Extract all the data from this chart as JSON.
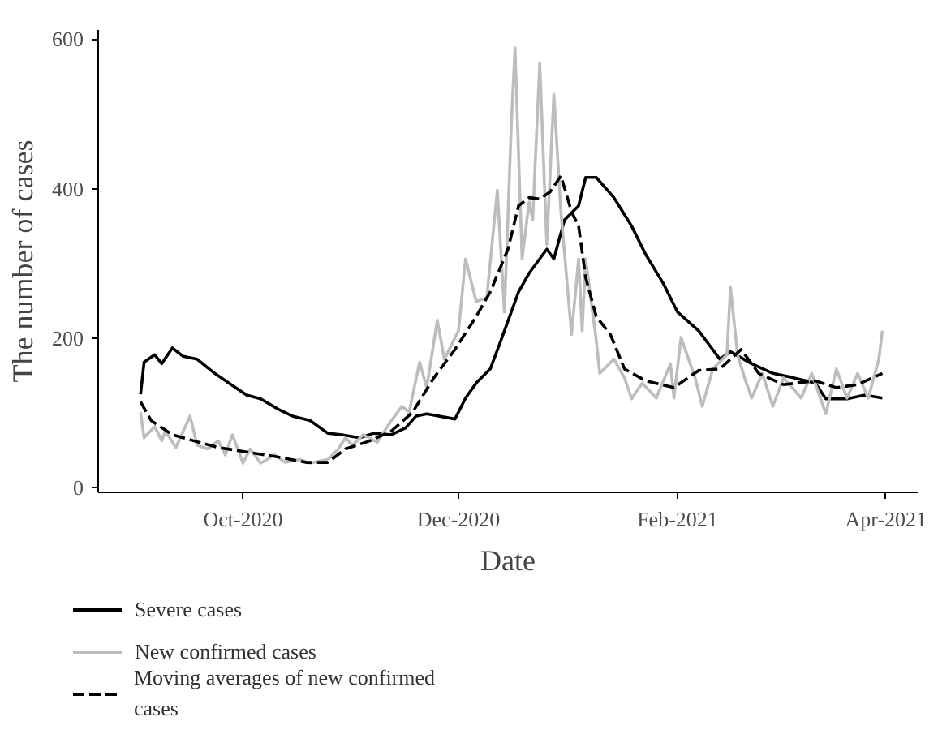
{
  "chart_data": {
    "type": "line",
    "xlabel": "Date",
    "ylabel": "The number of cases",
    "xlim": [
      "2020-08-21",
      "2021-04-10"
    ],
    "ylim": [
      -6,
      612
    ],
    "xticks": [
      {
        "value": "2020-10-01",
        "label": "Oct-2020"
      },
      {
        "value": "2020-12-01",
        "label": "Dec-2020"
      },
      {
        "value": "2021-02-01",
        "label": "Feb-2021"
      },
      {
        "value": "2021-04-01",
        "label": "Apr-2021"
      }
    ],
    "yticks": [
      0,
      200,
      400,
      600
    ],
    "grid": false,
    "legend": "bottom",
    "series": [
      {
        "name": "Severe cases",
        "color": "#000000",
        "line_style": "solid",
        "x": [
          "2020-09-02",
          "2020-09-03",
          "2020-09-06",
          "2020-09-08",
          "2020-09-11",
          "2020-09-14",
          "2020-09-18",
          "2020-09-23",
          "2020-09-27",
          "2020-10-02",
          "2020-10-06",
          "2020-10-11",
          "2020-10-15",
          "2020-10-20",
          "2020-10-25",
          "2020-10-29",
          "2020-11-03",
          "2020-11-07",
          "2020-11-12",
          "2020-11-16",
          "2020-11-19",
          "2020-11-22",
          "2020-11-30",
          "2020-12-03",
          "2020-12-06",
          "2020-12-10",
          "2020-12-13",
          "2020-12-18",
          "2020-12-21",
          "2020-12-26",
          "2020-12-28",
          "2020-12-31",
          "2021-01-04",
          "2021-01-06",
          "2021-01-09",
          "2021-01-14",
          "2021-01-19",
          "2021-01-23",
          "2021-01-28",
          "2021-02-01",
          "2021-02-07",
          "2021-02-13",
          "2021-02-16",
          "2021-02-22",
          "2021-02-28",
          "2021-03-06",
          "2021-03-12",
          "2021-03-15",
          "2021-03-21",
          "2021-03-26",
          "2021-03-31"
        ],
        "values": [
          125,
          168,
          178,
          166,
          187,
          176,
          172,
          153,
          140,
          124,
          119,
          105,
          96,
          90,
          73,
          71,
          67,
          73,
          71,
          80,
          96,
          99,
          92,
          120,
          140,
          159,
          197,
          262,
          287,
          319,
          306,
          358,
          377,
          415,
          415,
          388,
          350,
          312,
          273,
          235,
          210,
          172,
          182,
          166,
          153,
          147,
          140,
          119,
          119,
          124,
          120
        ]
      },
      {
        "name": "New confirmed cases",
        "color": "#bdbdbd",
        "line_style": "solid",
        "x": [
          "2020-09-02",
          "2020-09-03",
          "2020-09-06",
          "2020-09-08",
          "2020-09-09",
          "2020-09-12",
          "2020-09-16",
          "2020-09-18",
          "2020-09-21",
          "2020-09-24",
          "2020-09-26",
          "2020-09-28",
          "2020-10-01",
          "2020-10-03",
          "2020-10-06",
          "2020-10-10",
          "2020-10-13",
          "2020-10-17",
          "2020-10-20",
          "2020-10-25",
          "2020-10-28",
          "2020-10-30",
          "2020-11-01",
          "2020-11-04",
          "2020-11-08",
          "2020-11-12",
          "2020-11-15",
          "2020-11-17",
          "2020-11-20",
          "2020-11-22",
          "2020-11-25",
          "2020-11-27",
          "2020-12-01",
          "2020-12-03",
          "2020-12-06",
          "2020-12-09",
          "2020-12-12",
          "2020-12-14",
          "2020-12-16",
          "2020-12-17",
          "2020-12-19",
          "2020-12-21",
          "2020-12-22",
          "2020-12-24",
          "2020-12-26",
          "2020-12-28",
          "2020-12-30",
          "2021-01-02",
          "2021-01-04",
          "2021-01-05",
          "2021-01-06",
          "2021-01-09",
          "2021-01-10",
          "2021-01-14",
          "2021-01-17",
          "2021-01-19",
          "2021-01-22",
          "2021-01-26",
          "2021-01-30",
          "2021-01-31",
          "2021-02-02",
          "2021-02-06",
          "2021-02-08",
          "2021-02-11",
          "2021-02-15",
          "2021-02-16",
          "2021-02-18",
          "2021-02-20",
          "2021-02-22",
          "2021-02-25",
          "2021-02-28",
          "2021-03-03",
          "2021-03-08",
          "2021-03-11",
          "2021-03-15",
          "2021-03-18",
          "2021-03-21",
          "2021-03-24",
          "2021-03-27",
          "2021-03-30",
          "2021-03-31"
        ],
        "values": [
          101,
          67,
          82,
          63,
          76,
          54,
          96,
          57,
          52,
          63,
          44,
          71,
          33,
          52,
          33,
          44,
          34,
          38,
          33,
          38,
          52,
          67,
          57,
          71,
          61,
          90,
          109,
          101,
          168,
          134,
          224,
          172,
          210,
          306,
          249,
          254,
          398,
          235,
          491,
          588,
          306,
          382,
          358,
          568,
          325,
          526,
          369,
          205,
          306,
          210,
          306,
          197,
          153,
          172,
          147,
          119,
          140,
          120,
          166,
          120,
          201,
          147,
          109,
          159,
          178,
          268,
          178,
          147,
          120,
          153,
          109,
          147,
          120,
          153,
          99,
          159,
          120,
          153,
          120,
          172,
          210
        ]
      },
      {
        "name": "Moving averages of new confirmed cases",
        "color": "#000000",
        "line_style": "dashed",
        "x": [
          "2020-09-02",
          "2020-09-05",
          "2020-09-11",
          "2020-09-17",
          "2020-09-24",
          "2020-10-02",
          "2020-10-10",
          "2020-10-19",
          "2020-10-25",
          "2020-10-30",
          "2020-11-06",
          "2020-11-12",
          "2020-11-18",
          "2020-11-24",
          "2020-11-30",
          "2020-12-06",
          "2020-12-10",
          "2020-12-15",
          "2020-12-18",
          "2020-12-21",
          "2020-12-24",
          "2020-12-27",
          "2020-12-30",
          "2021-01-02",
          "2021-01-04",
          "2021-01-06",
          "2021-01-09",
          "2021-01-13",
          "2021-01-17",
          "2021-01-23",
          "2021-01-31",
          "2021-02-07",
          "2021-02-13",
          "2021-02-19",
          "2021-02-24",
          "2021-03-03",
          "2021-03-12",
          "2021-03-18",
          "2021-03-24",
          "2021-03-31"
        ],
        "values": [
          115,
          90,
          71,
          63,
          54,
          48,
          42,
          34,
          34,
          52,
          63,
          76,
          101,
          147,
          185,
          229,
          262,
          319,
          377,
          388,
          386,
          396,
          417,
          369,
          350,
          281,
          229,
          205,
          159,
          143,
          134,
          157,
          159,
          185,
          153,
          138,
          143,
          134,
          138,
          153
        ]
      }
    ]
  }
}
